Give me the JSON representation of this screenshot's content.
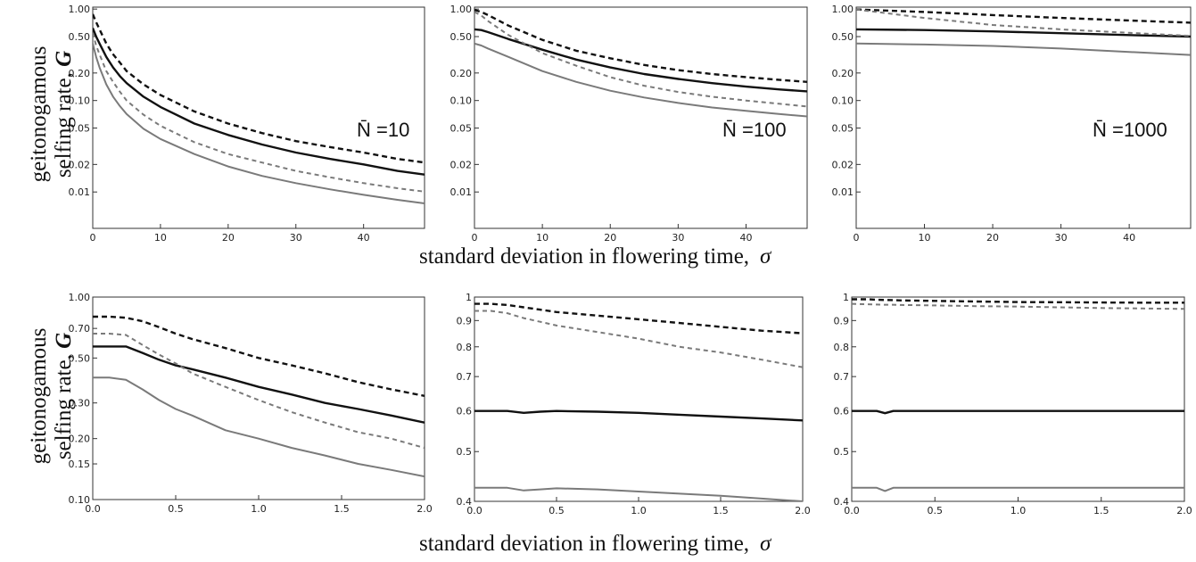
{
  "figure": {
    "top_ylabel": "geitonogamous selfing rate,",
    "top_ylabel_line1": "geitonogamous",
    "top_ylabel_line2": "selfing rate,",
    "ylabel_symbol": "G",
    "top_xlabel": "standard deviation in flowering time,",
    "bottom_xlabel": "standard deviation in flowering time,",
    "xlabel_symbol": "σ"
  },
  "colors": {
    "black": "#111111",
    "gray": "#7a7a7a"
  },
  "chart_data": [
    {
      "type": "line",
      "row": 0,
      "col": 0,
      "annotation": "N̄ =10",
      "yscale": "log",
      "ylim": [
        0.004,
        1.05
      ],
      "xlim": [
        0,
        49
      ],
      "xticks": [
        0,
        10,
        20,
        30,
        40
      ],
      "xticklabels": [
        "0",
        "10",
        "20",
        "30",
        "40"
      ],
      "yticks": [
        1,
        0.5,
        0.2,
        0.1,
        0.05,
        0.02,
        0.01
      ],
      "yticklabels": [
        "1.00",
        "0.50",
        "0.20",
        "0.10",
        "0.05",
        "0.02",
        "0.01"
      ],
      "grid": false,
      "x": [
        0,
        0.5,
        1,
        2,
        3,
        4,
        5,
        7.5,
        10,
        15,
        20,
        25,
        30,
        35,
        40,
        45,
        49
      ],
      "series": [
        {
          "color": "black",
          "dash": "dash",
          "values": [
            0.88,
            0.72,
            0.6,
            0.42,
            0.32,
            0.26,
            0.21,
            0.15,
            0.115,
            0.076,
            0.056,
            0.044,
            0.036,
            0.031,
            0.027,
            0.023,
            0.021
          ]
        },
        {
          "color": "black",
          "dash": "solid",
          "values": [
            0.62,
            0.5,
            0.42,
            0.3,
            0.23,
            0.185,
            0.155,
            0.11,
            0.085,
            0.056,
            0.042,
            0.033,
            0.027,
            0.023,
            0.02,
            0.017,
            0.0155
          ]
        },
        {
          "color": "gray",
          "dash": "dash",
          "values": [
            0.55,
            0.4,
            0.32,
            0.21,
            0.16,
            0.125,
            0.1,
            0.07,
            0.053,
            0.035,
            0.026,
            0.021,
            0.017,
            0.0145,
            0.0125,
            0.011,
            0.0101
          ]
        },
        {
          "color": "gray",
          "dash": "solid",
          "values": [
            0.42,
            0.3,
            0.23,
            0.15,
            0.11,
            0.087,
            0.071,
            0.049,
            0.038,
            0.026,
            0.019,
            0.015,
            0.0125,
            0.0107,
            0.0093,
            0.0082,
            0.0075
          ]
        }
      ]
    },
    {
      "type": "line",
      "row": 0,
      "col": 1,
      "annotation": "N̄ =100",
      "yscale": "log",
      "ylim": [
        0.004,
        1.05
      ],
      "xlim": [
        0,
        49
      ],
      "xticks": [
        0,
        10,
        20,
        30,
        40
      ],
      "xticklabels": [
        "0",
        "10",
        "20",
        "30",
        "40"
      ],
      "yticks": [
        1,
        0.5,
        0.2,
        0.1,
        0.05,
        0.02,
        0.01
      ],
      "yticklabels": [
        "1.00",
        "0.50",
        "0.20",
        "0.10",
        "0.05",
        "0.02",
        "0.01"
      ],
      "grid": false,
      "x": [
        0,
        1,
        2,
        5,
        10,
        15,
        20,
        25,
        30,
        35,
        40,
        45,
        49
      ],
      "series": [
        {
          "color": "black",
          "dash": "dash",
          "values": [
            0.98,
            0.93,
            0.86,
            0.66,
            0.46,
            0.35,
            0.29,
            0.245,
            0.215,
            0.195,
            0.18,
            0.168,
            0.16
          ]
        },
        {
          "color": "black",
          "dash": "solid",
          "values": [
            0.6,
            0.59,
            0.56,
            0.47,
            0.36,
            0.28,
            0.23,
            0.195,
            0.172,
            0.155,
            0.142,
            0.132,
            0.126
          ]
        },
        {
          "color": "gray",
          "dash": "dash",
          "values": [
            0.93,
            0.85,
            0.74,
            0.52,
            0.33,
            0.24,
            0.18,
            0.145,
            0.124,
            0.11,
            0.1,
            0.092,
            0.086
          ]
        },
        {
          "color": "gray",
          "dash": "solid",
          "values": [
            0.42,
            0.4,
            0.37,
            0.3,
            0.21,
            0.16,
            0.128,
            0.108,
            0.094,
            0.084,
            0.077,
            0.071,
            0.067
          ]
        }
      ]
    },
    {
      "type": "line",
      "row": 0,
      "col": 2,
      "annotation": "N̄ =1000",
      "yscale": "log",
      "ylim": [
        0.004,
        1.05
      ],
      "xlim": [
        0,
        49
      ],
      "xticks": [
        0,
        10,
        20,
        30,
        40
      ],
      "xticklabels": [
        "0",
        "10",
        "20",
        "30",
        "40"
      ],
      "yticks": [
        1,
        0.5,
        0.2,
        0.1,
        0.05,
        0.02,
        0.01
      ],
      "yticklabels": [
        "1.00",
        "0.50",
        "0.20",
        "0.10",
        "0.05",
        "0.02",
        "0.01"
      ],
      "grid": false,
      "x": [
        0,
        10,
        20,
        30,
        40,
        49
      ],
      "series": [
        {
          "color": "black",
          "dash": "dash",
          "values": [
            0.99,
            0.93,
            0.86,
            0.8,
            0.75,
            0.71
          ]
        },
        {
          "color": "black",
          "dash": "solid",
          "values": [
            0.6,
            0.59,
            0.57,
            0.545,
            0.52,
            0.5
          ]
        },
        {
          "color": "gray",
          "dash": "dash",
          "values": [
            0.99,
            0.8,
            0.67,
            0.6,
            0.55,
            0.51
          ]
        },
        {
          "color": "gray",
          "dash": "solid",
          "values": [
            0.42,
            0.41,
            0.395,
            0.37,
            0.34,
            0.315
          ]
        }
      ]
    },
    {
      "type": "line",
      "row": 1,
      "col": 0,
      "yscale": "log",
      "ylim": [
        0.1,
        1.0
      ],
      "xlim": [
        0,
        2
      ],
      "xticks": [
        0,
        0.5,
        1,
        1.5,
        2
      ],
      "xticklabels": [
        "0.0",
        "0.5",
        "1.0",
        "1.5",
        "2.0"
      ],
      "yticks": [
        1,
        0.7,
        0.5,
        0.3,
        0.2,
        0.15,
        0.1
      ],
      "yticklabels": [
        "1.00",
        "0.70",
        "0.50",
        "0.30",
        "0.20",
        "0.15",
        "0.10"
      ],
      "grid": false,
      "x": [
        0,
        0.1,
        0.2,
        0.3,
        0.4,
        0.5,
        0.6,
        0.8,
        1.0,
        1.2,
        1.4,
        1.6,
        1.8,
        2.0
      ],
      "series": [
        {
          "color": "black",
          "dash": "dash",
          "values": [
            0.8,
            0.8,
            0.79,
            0.76,
            0.71,
            0.66,
            0.62,
            0.56,
            0.5,
            0.46,
            0.42,
            0.38,
            0.35,
            0.325
          ]
        },
        {
          "color": "black",
          "dash": "solid",
          "values": [
            0.57,
            0.57,
            0.57,
            0.53,
            0.49,
            0.46,
            0.44,
            0.4,
            0.36,
            0.33,
            0.3,
            0.28,
            0.26,
            0.24
          ]
        },
        {
          "color": "gray",
          "dash": "dash",
          "values": [
            0.66,
            0.66,
            0.65,
            0.58,
            0.52,
            0.47,
            0.42,
            0.36,
            0.31,
            0.27,
            0.24,
            0.215,
            0.2,
            0.18
          ]
        },
        {
          "color": "gray",
          "dash": "solid",
          "values": [
            0.4,
            0.4,
            0.39,
            0.35,
            0.31,
            0.28,
            0.26,
            0.22,
            0.2,
            0.18,
            0.165,
            0.15,
            0.14,
            0.13
          ]
        }
      ]
    },
    {
      "type": "line",
      "row": 1,
      "col": 1,
      "yscale": "log",
      "ylim": [
        0.4,
        1.0
      ],
      "xlim": [
        0,
        2
      ],
      "xticks": [
        0,
        0.5,
        1,
        1.5,
        2
      ],
      "xticklabels": [
        "0.0",
        "0.5",
        "1.0",
        "1.5",
        "2.0"
      ],
      "yticks": [
        1,
        0.9,
        0.8,
        0.7,
        0.6,
        0.5,
        0.4
      ],
      "yticklabels": [
        "1",
        "0.9",
        "0.8",
        "0.7",
        "0.6",
        "0.5",
        "0.4"
      ],
      "grid": false,
      "x": [
        0,
        0.1,
        0.2,
        0.3,
        0.4,
        0.5,
        0.75,
        1.0,
        1.25,
        1.5,
        1.75,
        2.0
      ],
      "series": [
        {
          "color": "black",
          "dash": "dash",
          "values": [
            0.97,
            0.97,
            0.965,
            0.955,
            0.945,
            0.935,
            0.92,
            0.905,
            0.89,
            0.875,
            0.86,
            0.85
          ]
        },
        {
          "color": "black",
          "dash": "solid",
          "values": [
            0.6,
            0.6,
            0.6,
            0.595,
            0.598,
            0.6,
            0.598,
            0.595,
            0.59,
            0.585,
            0.58,
            0.575
          ]
        },
        {
          "color": "gray",
          "dash": "dash",
          "values": [
            0.94,
            0.94,
            0.93,
            0.91,
            0.895,
            0.88,
            0.855,
            0.83,
            0.8,
            0.78,
            0.755,
            0.73
          ]
        },
        {
          "color": "gray",
          "dash": "solid",
          "values": [
            0.425,
            0.425,
            0.425,
            0.42,
            0.422,
            0.424,
            0.422,
            0.418,
            0.414,
            0.41,
            0.405,
            0.4
          ]
        }
      ]
    },
    {
      "type": "line",
      "row": 1,
      "col": 2,
      "yscale": "log",
      "ylim": [
        0.4,
        1.0
      ],
      "xlim": [
        0,
        2
      ],
      "xticks": [
        0,
        0.5,
        1,
        1.5,
        2
      ],
      "xticklabels": [
        "0.0",
        "0.5",
        "1.0",
        "1.5",
        "2.0"
      ],
      "yticks": [
        1,
        0.9,
        0.8,
        0.7,
        0.6,
        0.5,
        0.4
      ],
      "yticklabels": [
        "1",
        "0.9",
        "0.8",
        "0.7",
        "0.6",
        "0.5",
        "0.4"
      ],
      "grid": false,
      "x": [
        0,
        0.1,
        0.15,
        0.2,
        0.25,
        0.3,
        0.5,
        0.75,
        1.0,
        1.25,
        1.5,
        1.75,
        2.0
      ],
      "series": [
        {
          "color": "black",
          "dash": "dash",
          "values": [
            0.99,
            0.99,
            0.988,
            0.987,
            0.986,
            0.985,
            0.983,
            0.98,
            0.978,
            0.977,
            0.976,
            0.975,
            0.975
          ]
        },
        {
          "color": "black",
          "dash": "solid",
          "values": [
            0.6,
            0.6,
            0.6,
            0.594,
            0.6,
            0.6,
            0.6,
            0.6,
            0.6,
            0.6,
            0.6,
            0.6,
            0.6
          ]
        },
        {
          "color": "gray",
          "dash": "dash",
          "values": [
            0.97,
            0.968,
            0.967,
            0.966,
            0.966,
            0.965,
            0.963,
            0.96,
            0.958,
            0.955,
            0.952,
            0.95,
            0.948
          ]
        },
        {
          "color": "gray",
          "dash": "solid",
          "values": [
            0.425,
            0.425,
            0.425,
            0.419,
            0.425,
            0.425,
            0.425,
            0.425,
            0.425,
            0.425,
            0.425,
            0.425,
            0.425
          ]
        }
      ]
    }
  ]
}
